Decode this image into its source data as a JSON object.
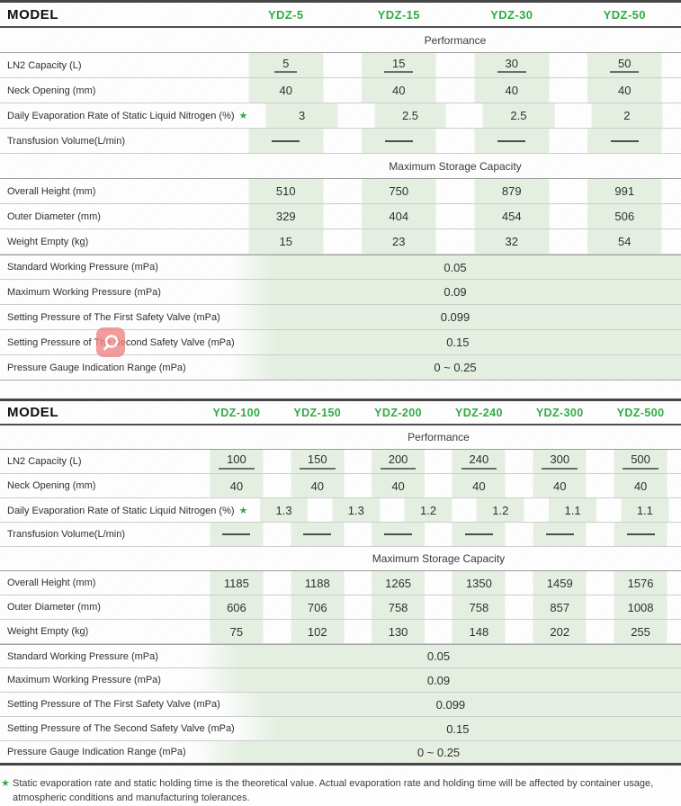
{
  "colors": {
    "model_green": "#2fab44",
    "stripe_green": "#e4efe2",
    "line_dark": "#454545",
    "overlay_red": "rgba(238,133,133,0.8)"
  },
  "star_symbol": "★",
  "tables": [
    {
      "model_label": "MODEL",
      "models": [
        "YDZ-5",
        "YDZ-15",
        "YDZ-30",
        "YDZ-50"
      ],
      "sections": [
        {
          "header": "Performance",
          "rows": [
            {
              "label": "LN2 Capacity (L)",
              "values": [
                "5",
                "15",
                "30",
                "50"
              ],
              "underline": true
            },
            {
              "label": "Neck Opening (mm)",
              "values": [
                "40",
                "40",
                "40",
                "40"
              ]
            },
            {
              "label": "Daily Evaporation Rate of Static Liquid Nitrogen (%)",
              "star": true,
              "values": [
                "3",
                "2.5",
                "2.5",
                "2"
              ]
            },
            {
              "label": "Transfusion Volume(L/min)",
              "dash": true
            }
          ]
        },
        {
          "header": "Maximum Storage Capacity",
          "rows": [
            {
              "label": "Overall Height (mm)",
              "values": [
                "510",
                "750",
                "879",
                "991"
              ]
            },
            {
              "label": "Outer Diameter (mm)",
              "values": [
                "329",
                "404",
                "454",
                "506"
              ]
            },
            {
              "label": "Weight Empty (kg)",
              "values": [
                "15",
                "23",
                "32",
                "54"
              ]
            }
          ]
        },
        {
          "header": null,
          "rows": [
            {
              "label": "Standard Working Pressure (mPa)",
              "span_value": "0.05"
            },
            {
              "label": "Maximum Working Pressure (mPa)",
              "span_value": "0.09"
            },
            {
              "label": "Setting Pressure of The First Safety Valve (mPa)",
              "span_value": "0.099"
            },
            {
              "label": "Setting Pressure of The Second Safety Valve (mPa)",
              "span_value": "0.15"
            },
            {
              "label": "Pressure Gauge Indication Range (mPa)",
              "span_value": "0 ~ 0.25"
            }
          ]
        }
      ]
    },
    {
      "model_label": "MODEL",
      "models": [
        "YDZ-100",
        "YDZ-150",
        "YDZ-200",
        "YDZ-240",
        "YDZ-300",
        "YDZ-500"
      ],
      "sections": [
        {
          "header": "Performance",
          "rows": [
            {
              "label": "LN2 Capacity (L)",
              "values": [
                "100",
                "150",
                "200",
                "240",
                "300",
                "500"
              ],
              "underline": true
            },
            {
              "label": "Neck Opening (mm)",
              "values": [
                "40",
                "40",
                "40",
                "40",
                "40",
                "40"
              ]
            },
            {
              "label": "Daily Evaporation Rate of Static Liquid Nitrogen (%)",
              "star": true,
              "values": [
                "1.3",
                "1.3",
                "1.2",
                "1.2",
                "1.1",
                "1.1"
              ]
            },
            {
              "label": "Transfusion Volume(L/min)",
              "dash": true
            }
          ]
        },
        {
          "header": "Maximum Storage Capacity",
          "rows": [
            {
              "label": "Overall Height (mm)",
              "values": [
                "1185",
                "1188",
                "1265",
                "1350",
                "1459",
                "1576"
              ]
            },
            {
              "label": "Outer Diameter (mm)",
              "values": [
                "606",
                "706",
                "758",
                "758",
                "857",
                "1008"
              ]
            },
            {
              "label": "Weight Empty (kg)",
              "values": [
                "75",
                "102",
                "130",
                "148",
                "202",
                "255"
              ]
            }
          ]
        },
        {
          "header": null,
          "rows": [
            {
              "label": "Standard Working Pressure (mPa)",
              "span_value": "0.05"
            },
            {
              "label": "Maximum Working Pressure (mPa)",
              "span_value": "0.09"
            },
            {
              "label": "Setting Pressure of The First Safety Valve (mPa)",
              "span_value": "0.099"
            },
            {
              "label": "Setting Pressure of The Second Safety Valve (mPa)",
              "span_value": "0.15"
            },
            {
              "label": "Pressure Gauge Indication Range (mPa)",
              "span_value": "0 ~ 0.25"
            }
          ]
        }
      ]
    }
  ],
  "footnote": {
    "star": "★",
    "text": "Static evaporation rate and static holding time is the theoretical value. Actual evaporation rate and holding time will be affected by container usage, atmospheric conditions and manufacturing tolerances."
  }
}
